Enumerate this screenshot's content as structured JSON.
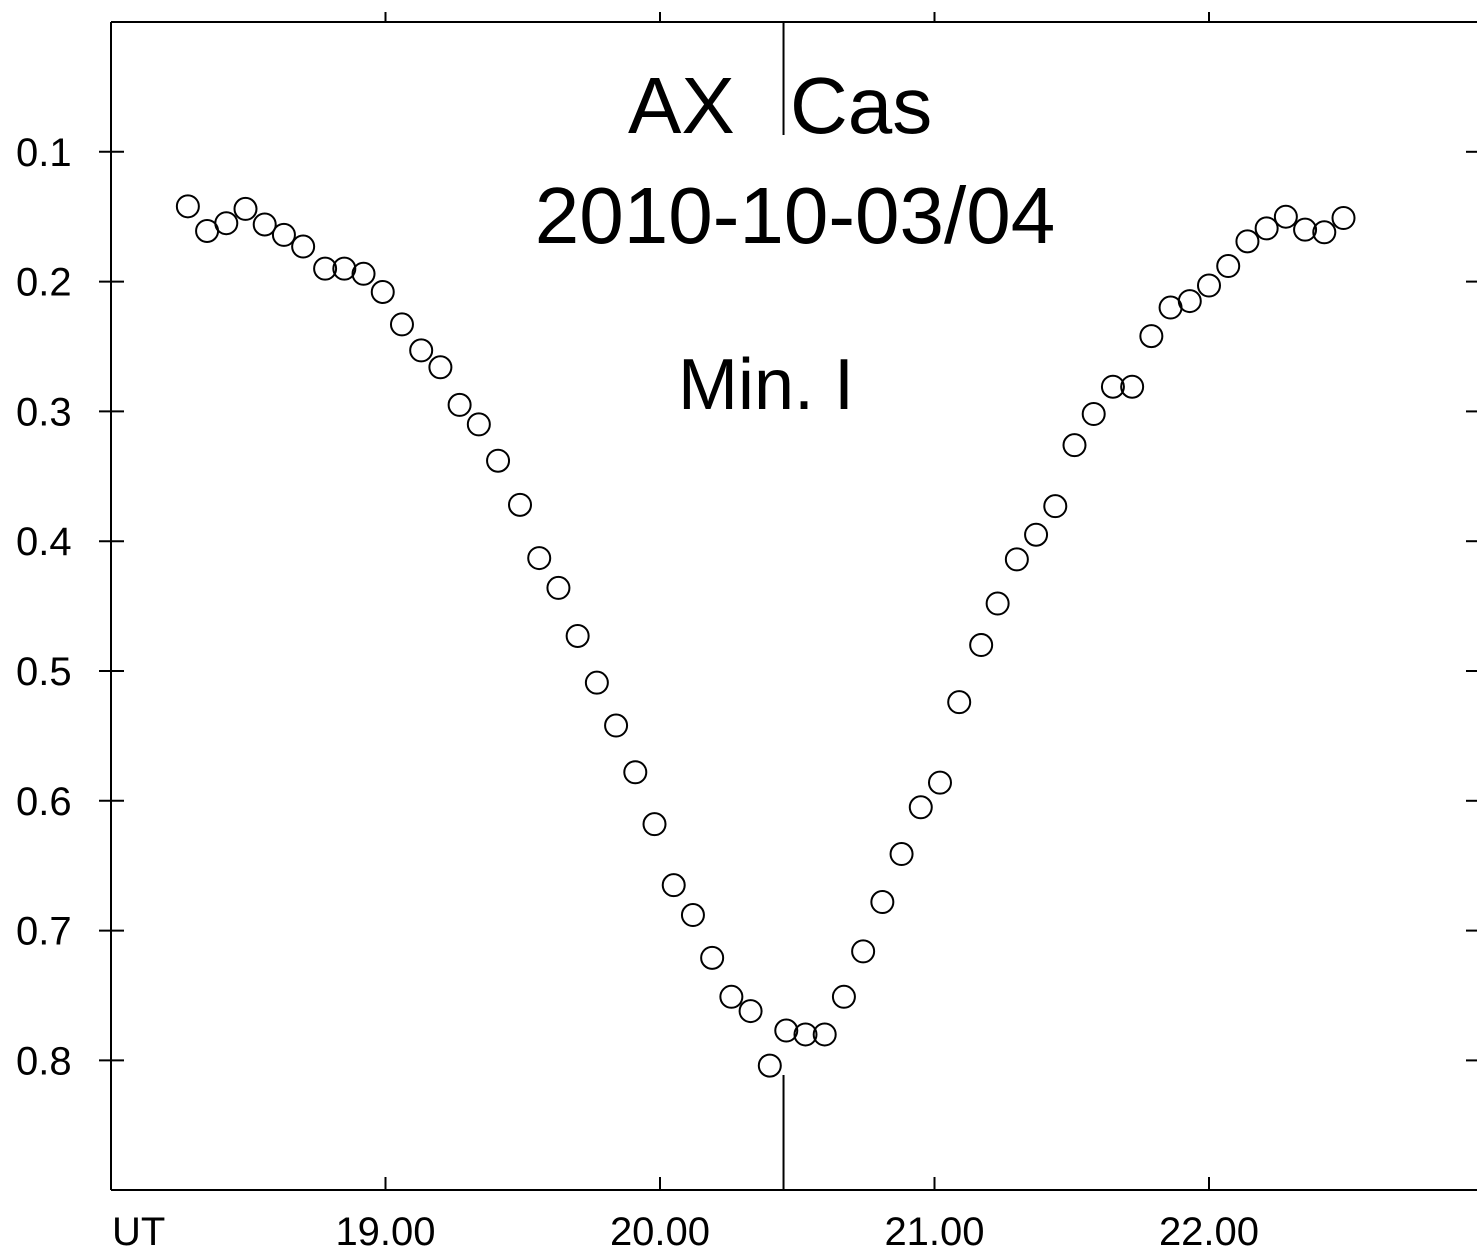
{
  "chart_data": {
    "type": "scatter",
    "title_line1_left": "AX",
    "title_line1_right": "Cas",
    "title_line2": "2010-10-03/04",
    "annotation": "Min. I",
    "xlabel": "UT",
    "x_tick_labels": [
      "19.00",
      "20.00",
      "21.00",
      "22.00"
    ],
    "x_ticks": [
      19.0,
      20.0,
      21.0,
      22.0
    ],
    "y_tick_labels": [
      "0.1",
      "0.2",
      "0.3",
      "0.4",
      "0.5",
      "0.6",
      "0.7",
      "0.8"
    ],
    "y_ticks": [
      0.1,
      0.2,
      0.3,
      0.4,
      0.5,
      0.6,
      0.7,
      0.8
    ],
    "xlim": [
      18.0,
      22.9
    ],
    "ylim": [
      0.0,
      0.9
    ],
    "y_inverted": true,
    "minimum_marker_x": 20.45,
    "marker": "open-circle",
    "points": [
      [
        18.28,
        0.142
      ],
      [
        18.35,
        0.161
      ],
      [
        18.42,
        0.155
      ],
      [
        18.49,
        0.144
      ],
      [
        18.56,
        0.156
      ],
      [
        18.63,
        0.164
      ],
      [
        18.7,
        0.173
      ],
      [
        18.78,
        0.19
      ],
      [
        18.85,
        0.19
      ],
      [
        18.92,
        0.194
      ],
      [
        18.99,
        0.208
      ],
      [
        19.06,
        0.233
      ],
      [
        19.13,
        0.253
      ],
      [
        19.2,
        0.266
      ],
      [
        19.27,
        0.295
      ],
      [
        19.34,
        0.31
      ],
      [
        19.41,
        0.338
      ],
      [
        19.49,
        0.372
      ],
      [
        19.56,
        0.413
      ],
      [
        19.63,
        0.436
      ],
      [
        19.7,
        0.473
      ],
      [
        19.77,
        0.509
      ],
      [
        19.84,
        0.542
      ],
      [
        19.91,
        0.578
      ],
      [
        19.98,
        0.618
      ],
      [
        20.05,
        0.665
      ],
      [
        20.12,
        0.688
      ],
      [
        20.19,
        0.721
      ],
      [
        20.26,
        0.751
      ],
      [
        20.33,
        0.762
      ],
      [
        20.4,
        0.804
      ],
      [
        20.46,
        0.777
      ],
      [
        20.53,
        0.78
      ],
      [
        20.6,
        0.78
      ],
      [
        20.67,
        0.751
      ],
      [
        20.74,
        0.716
      ],
      [
        20.81,
        0.678
      ],
      [
        20.88,
        0.641
      ],
      [
        20.95,
        0.605
      ],
      [
        21.02,
        0.586
      ],
      [
        21.09,
        0.524
      ],
      [
        21.17,
        0.48
      ],
      [
        21.23,
        0.448
      ],
      [
        21.3,
        0.414
      ],
      [
        21.37,
        0.395
      ],
      [
        21.44,
        0.373
      ],
      [
        21.51,
        0.326
      ],
      [
        21.58,
        0.302
      ],
      [
        21.65,
        0.281
      ],
      [
        21.72,
        0.281
      ],
      [
        21.79,
        0.242
      ],
      [
        21.86,
        0.22
      ],
      [
        21.93,
        0.215
      ],
      [
        22.0,
        0.203
      ],
      [
        22.07,
        0.188
      ],
      [
        22.14,
        0.169
      ],
      [
        22.21,
        0.159
      ],
      [
        22.28,
        0.15
      ],
      [
        22.35,
        0.16
      ],
      [
        22.42,
        0.162
      ],
      [
        22.49,
        0.151
      ]
    ]
  }
}
